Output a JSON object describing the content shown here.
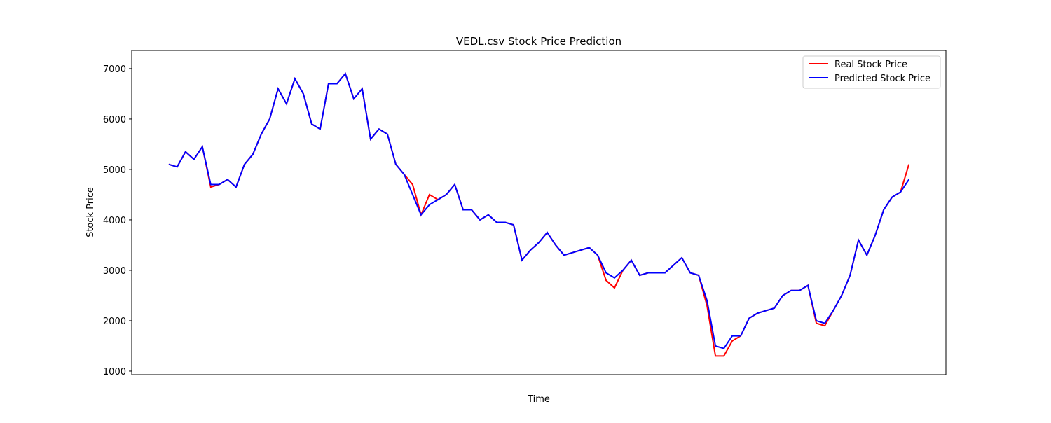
{
  "chart_data": {
    "type": "line",
    "title": "VEDL.csv Stock Price Prediction",
    "x_label": "Time",
    "y_label": "Stock Price",
    "ylim": [
      930,
      7360
    ],
    "yticks": [
      1000,
      2000,
      3000,
      4000,
      5000,
      6000,
      7000
    ],
    "legend": "upper right",
    "series": [
      {
        "name": "Real Stock Price",
        "color": "#ff0000",
        "values": [
          5100,
          5050,
          5350,
          5200,
          5450,
          4650,
          4700,
          4800,
          4650,
          5100,
          5300,
          5700,
          6000,
          6600,
          6300,
          6800,
          6500,
          5900,
          5800,
          6700,
          6700,
          6900,
          6400,
          6600,
          5600,
          5800,
          5700,
          5100,
          4900,
          4700,
          4100,
          4500,
          4400,
          4500,
          4700,
          4200,
          4200,
          4000,
          4100,
          3950,
          3950,
          3900,
          3200,
          3400,
          3550,
          3750,
          3500,
          3300,
          3350,
          3400,
          3450,
          3300,
          2800,
          2650,
          3000,
          3200,
          2900,
          2950,
          2950,
          2950,
          3100,
          3250,
          2950,
          2900,
          2300,
          1300,
          1300,
          1600,
          1700,
          2050,
          2150,
          2200,
          2250,
          2500,
          2600,
          2600,
          2700,
          1950,
          1900,
          2200,
          2500,
          2900,
          3600,
          3300,
          3700,
          4200,
          4450,
          4550,
          5100
        ]
      },
      {
        "name": "Predicted Stock Price",
        "color": "#0000ff",
        "values": [
          5100,
          5050,
          5350,
          5200,
          5450,
          4700,
          4700,
          4800,
          4650,
          5100,
          5300,
          5700,
          6000,
          6600,
          6300,
          6800,
          6500,
          5900,
          5800,
          6700,
          6700,
          6900,
          6400,
          6600,
          5600,
          5800,
          5700,
          5100,
          4900,
          4500,
          4100,
          4300,
          4400,
          4500,
          4700,
          4200,
          4200,
          4000,
          4100,
          3950,
          3950,
          3900,
          3200,
          3400,
          3550,
          3750,
          3500,
          3300,
          3350,
          3400,
          3450,
          3300,
          2950,
          2850,
          3000,
          3200,
          2900,
          2950,
          2950,
          2950,
          3100,
          3250,
          2950,
          2900,
          2400,
          1500,
          1450,
          1700,
          1700,
          2050,
          2150,
          2200,
          2250,
          2500,
          2600,
          2600,
          2700,
          2000,
          1950,
          2200,
          2500,
          2900,
          3600,
          3300,
          3700,
          4200,
          4450,
          4550,
          4800
        ]
      }
    ]
  }
}
